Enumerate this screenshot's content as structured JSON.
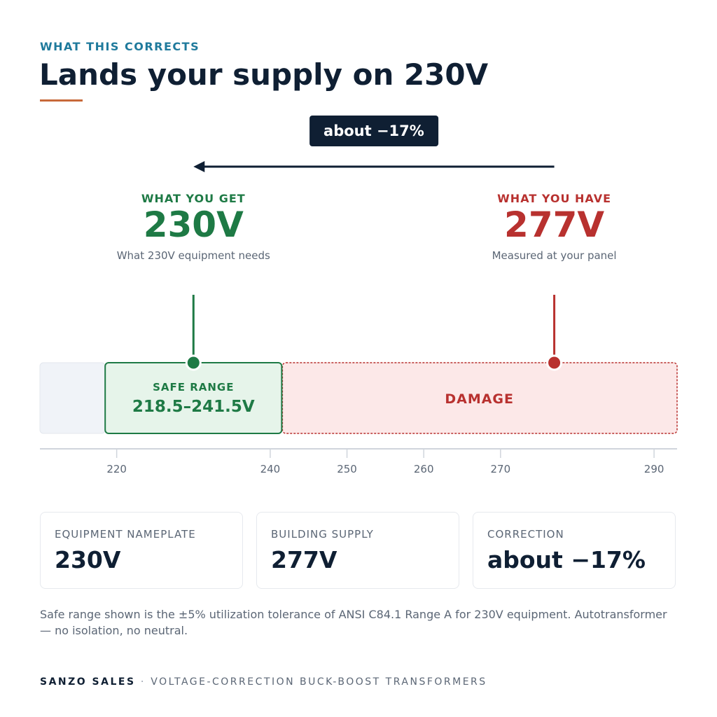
{
  "eyebrow": "WHAT THIS CORRECTS",
  "title": "Lands your supply on 230V",
  "badge": "about −17%",
  "get": {
    "label": "WHAT YOU GET",
    "value": 230,
    "value_label": "230V",
    "note": "What 230V equipment needs"
  },
  "have": {
    "label": "WHAT YOU HAVE",
    "value": 277,
    "value_label": "277V",
    "note": "Measured at your panel"
  },
  "scale": {
    "xlim": [
      210,
      293
    ],
    "xticks": [
      220,
      240,
      250,
      260,
      270,
      290
    ],
    "safe": {
      "label": "SAFE RANGE",
      "range": [
        218.5,
        241.5
      ],
      "range_label": "218.5–241.5V"
    },
    "damage": {
      "label": "DAMAGE"
    }
  },
  "cards": [
    {
      "label": "EQUIPMENT NAMEPLATE",
      "value": "230V"
    },
    {
      "label": "BUILDING SUPPLY",
      "value": "277V"
    },
    {
      "label": "CORRECTION",
      "value": "about −17%"
    }
  ],
  "footnote": "Safe range shown is the ±5% utilization tolerance of ANSI C84.1 Range A for 230V equipment. Autotransformer — no isolation, no neutral.",
  "footer": {
    "brand": "SANZO SALES",
    "separator": "·",
    "tagline": "VOLTAGE-CORRECTION BUCK-BOOST TRANSFORMERS"
  }
}
